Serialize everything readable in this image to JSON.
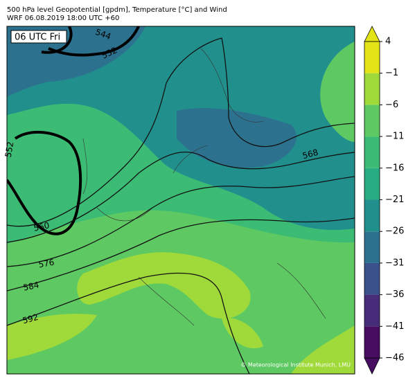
{
  "header": {
    "line1": "500 hPa level Geopotential [gpdm], Temperature [°C] and Wind",
    "line2": "WRF 06.08.2019 18:00 UTC +60"
  },
  "map": {
    "time_label": "06 UTC Fri",
    "contour_labels": [
      544,
      552,
      552,
      560,
      568,
      576,
      584,
      592
    ],
    "copyright": "© Meteorological Institute Munich, LMU"
  },
  "colorbar": {
    "ticks": [
      {
        "value": -46,
        "label": "−46"
      },
      {
        "value": -41,
        "label": "−41"
      },
      {
        "value": -36,
        "label": "−36"
      },
      {
        "value": -31,
        "label": "−31"
      },
      {
        "value": -26,
        "label": "−26"
      },
      {
        "value": -21,
        "label": "−21"
      },
      {
        "value": -16,
        "label": "−16"
      },
      {
        "value": -11,
        "label": "−11"
      },
      {
        "value": -6,
        "label": "−6"
      },
      {
        "value": -1,
        "label": "−1"
      },
      4
    ],
    "colors": [
      "#470d60",
      "#472c7a",
      "#3b518b",
      "#2c718e",
      "#21908d",
      "#27ad81",
      "#3cbb75",
      "#5ec962",
      "#9fda3a",
      "#e2e418"
    ]
  }
}
